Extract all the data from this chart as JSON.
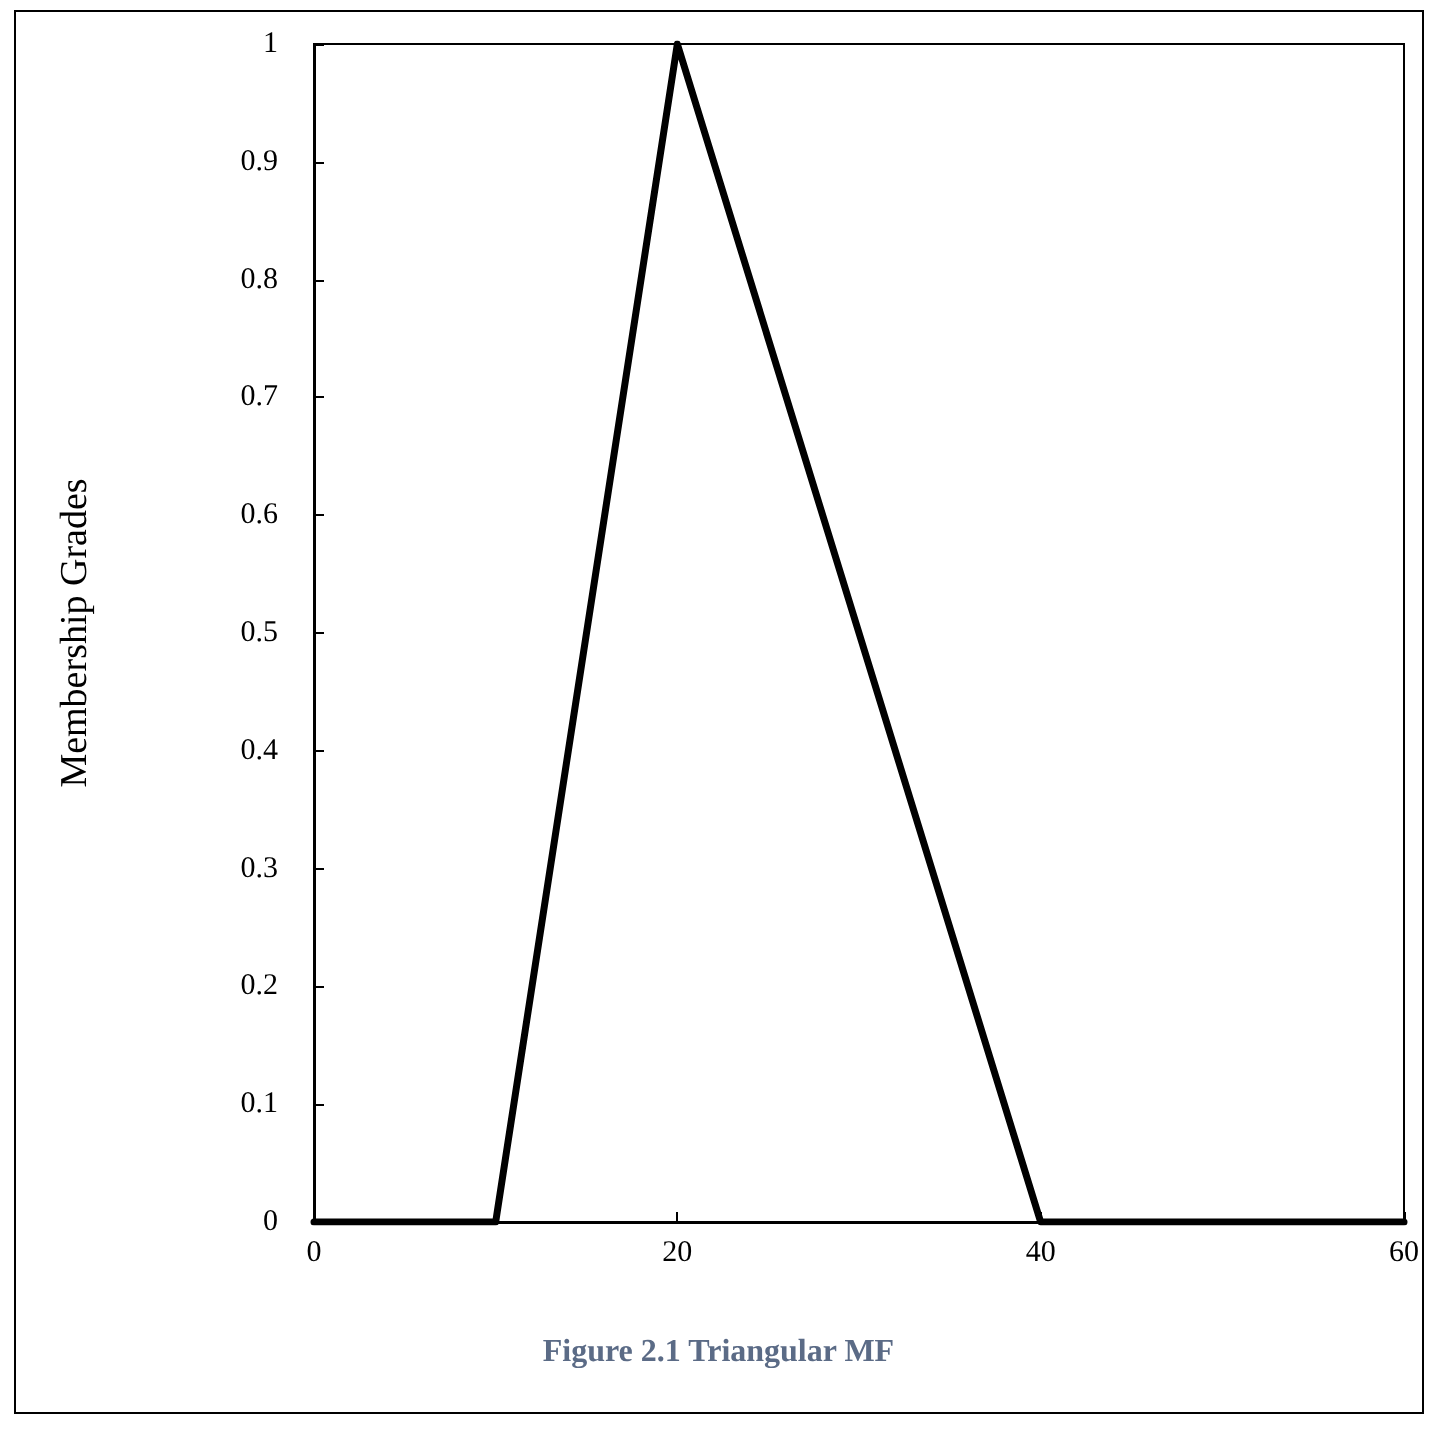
{
  "chart_data": {
    "type": "line",
    "ylabel": "Membership Grades",
    "annotations": [
      "Figure 2.1 Triangular MF"
    ],
    "x": [
      0,
      10,
      20,
      40,
      60
    ],
    "series": [
      {
        "color": "#000000",
        "values": [
          0,
          0,
          1,
          0,
          0
        ]
      }
    ],
    "xlim": [
      0,
      60
    ],
    "xticks": [
      0,
      20,
      40,
      60
    ],
    "ylim": [
      0,
      1
    ],
    "yticks": [
      0,
      0.1,
      0.2,
      0.3,
      0.4,
      0.5,
      0.6,
      0.7,
      0.8,
      0.9,
      1
    ],
    "grid": false,
    "marker": "none",
    "line_style": "solid"
  }
}
